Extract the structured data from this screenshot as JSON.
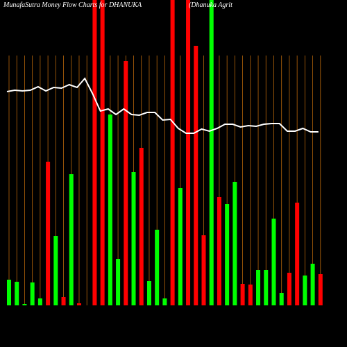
{
  "chart_data": {
    "type": "bar-line",
    "title": "MunafaSutra  Money Flow  Charts for DHANUKA",
    "subtitle": "(Dhanuka Agrit",
    "ylim": [
      0,
      440
    ],
    "bars": {
      "values": [
        37,
        34,
        2,
        33,
        10,
        207,
        100,
        12,
        189,
        3,
        0,
        450,
        450,
        275,
        67,
        352,
        192,
        227,
        35,
        109,
        10,
        450,
        169,
        450,
        374,
        101,
        450,
        156,
        146,
        178,
        31,
        30,
        51,
        51,
        125,
        18,
        47,
        148,
        43,
        60,
        45
      ],
      "colors": [
        "g",
        "g",
        "g",
        "g",
        "g",
        "r",
        "g",
        "r",
        "g",
        "r",
        "g",
        "r",
        "r",
        "g",
        "g",
        "r",
        "g",
        "r",
        "g",
        "g",
        "g",
        "r",
        "g",
        "r",
        "r",
        "r",
        "g",
        "r",
        "g",
        "g",
        "r",
        "r",
        "g",
        "g",
        "g",
        "g",
        "r",
        "r",
        "g",
        "g",
        "r"
      ]
    },
    "line": {
      "color": "#ffffff",
      "values": [
        308,
        310,
        309,
        310,
        315,
        309,
        314,
        313,
        318,
        314,
        327,
        305,
        280,
        283,
        275,
        283,
        275,
        274,
        278,
        278,
        267,
        268,
        255,
        248,
        248,
        254,
        251,
        255,
        261,
        261,
        257,
        259,
        258,
        261,
        262,
        262,
        251,
        251,
        255,
        250,
        250
      ]
    },
    "palette": {
      "g": "#00ff00",
      "r": "#ff0000",
      "grid": "#b8660b"
    }
  }
}
